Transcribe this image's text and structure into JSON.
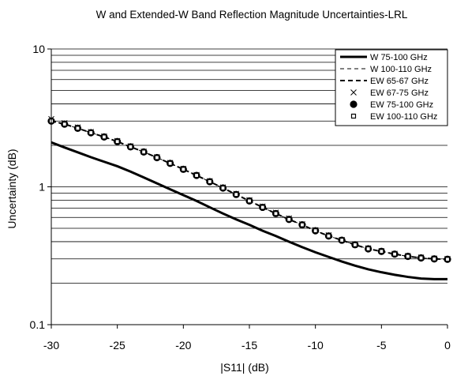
{
  "chart_data": {
    "type": "line",
    "title": "W and Extended-W Band Reflection Magnitude Uncertainties-LRL",
    "xlabel": "|S11| (dB)",
    "ylabel": "Uncertainty (dB)",
    "xlim": [
      -30,
      0
    ],
    "ylim": [
      0.1,
      10
    ],
    "yscale": "log",
    "x_ticks": [
      "-30",
      "-25",
      "-20",
      "-15",
      "-10",
      "-5",
      "0"
    ],
    "y_ticks": [
      "0.1",
      "1",
      "10"
    ],
    "grid": "horizontal log minor gridlines",
    "legend_position": "top-right",
    "x": [
      -30,
      -29,
      -28,
      -27,
      -26,
      -25,
      -24,
      -23,
      -22,
      -21,
      -20,
      -19,
      -18,
      -17,
      -16,
      -15,
      -14,
      -13,
      -12,
      -11,
      -10,
      -9,
      -8,
      -7,
      -6,
      -5,
      -4,
      -3,
      -2,
      -1,
      0
    ],
    "series": [
      {
        "name": "W 75-100 GHz",
        "marker": "solid-line",
        "values": [
          2.1,
          1.93,
          1.78,
          1.64,
          1.52,
          1.41,
          1.29,
          1.17,
          1.06,
          0.96,
          0.87,
          0.79,
          0.71,
          0.64,
          0.58,
          0.53,
          0.48,
          0.44,
          0.4,
          0.365,
          0.335,
          0.31,
          0.287,
          0.268,
          0.252,
          0.24,
          0.23,
          0.222,
          0.216,
          0.214,
          0.214
        ]
      },
      {
        "name": "W 100-110 GHz",
        "marker": "thin-dashed-line",
        "values": [
          3.0,
          2.85,
          2.66,
          2.47,
          2.3,
          2.13,
          1.95,
          1.79,
          1.63,
          1.48,
          1.34,
          1.21,
          1.09,
          0.98,
          0.88,
          0.79,
          0.71,
          0.64,
          0.58,
          0.53,
          0.48,
          0.44,
          0.41,
          0.38,
          0.355,
          0.34,
          0.325,
          0.313,
          0.305,
          0.3,
          0.298
        ]
      },
      {
        "name": "EW 65-67 GHz",
        "marker": "thick-dashed-line",
        "values": [
          3.0,
          2.85,
          2.66,
          2.47,
          2.3,
          2.13,
          1.95,
          1.79,
          1.63,
          1.48,
          1.34,
          1.21,
          1.09,
          0.98,
          0.88,
          0.79,
          0.71,
          0.64,
          0.58,
          0.53,
          0.48,
          0.44,
          0.41,
          0.38,
          0.355,
          0.34,
          0.325,
          0.313,
          0.305,
          0.3,
          0.298
        ]
      },
      {
        "name": "EW 67-75 GHz",
        "marker": "x",
        "values": [
          3.1,
          2.9,
          2.7,
          2.5,
          2.32,
          2.15,
          1.97,
          1.8,
          1.64,
          1.49,
          1.35,
          1.22,
          1.1,
          0.99,
          0.89,
          0.8,
          0.72,
          0.65,
          0.59,
          0.535,
          0.485,
          0.445,
          0.412,
          0.383,
          0.358,
          0.342,
          0.327,
          0.315,
          0.307,
          0.302,
          0.3
        ]
      },
      {
        "name": "EW 75-100 GHz",
        "marker": "filled-circle",
        "values": [
          3.0,
          2.85,
          2.66,
          2.47,
          2.3,
          2.13,
          1.95,
          1.79,
          1.63,
          1.48,
          1.34,
          1.21,
          1.09,
          0.98,
          0.88,
          0.79,
          0.71,
          0.64,
          0.58,
          0.53,
          0.48,
          0.44,
          0.41,
          0.38,
          0.355,
          0.34,
          0.325,
          0.313,
          0.305,
          0.3,
          0.298
        ]
      },
      {
        "name": "EW 100-110 GHz",
        "marker": "small-square",
        "values": [
          3.0,
          2.85,
          2.66,
          2.47,
          2.3,
          2.13,
          1.95,
          1.79,
          1.63,
          1.48,
          1.34,
          1.21,
          1.09,
          0.98,
          0.88,
          0.79,
          0.71,
          0.64,
          0.58,
          0.53,
          0.48,
          0.44,
          0.41,
          0.38,
          0.355,
          0.34,
          0.325,
          0.313,
          0.305,
          0.3,
          0.298
        ]
      }
    ],
    "colors": {
      "line": "#000000",
      "grid": "#000000",
      "background": "#ffffff"
    }
  }
}
